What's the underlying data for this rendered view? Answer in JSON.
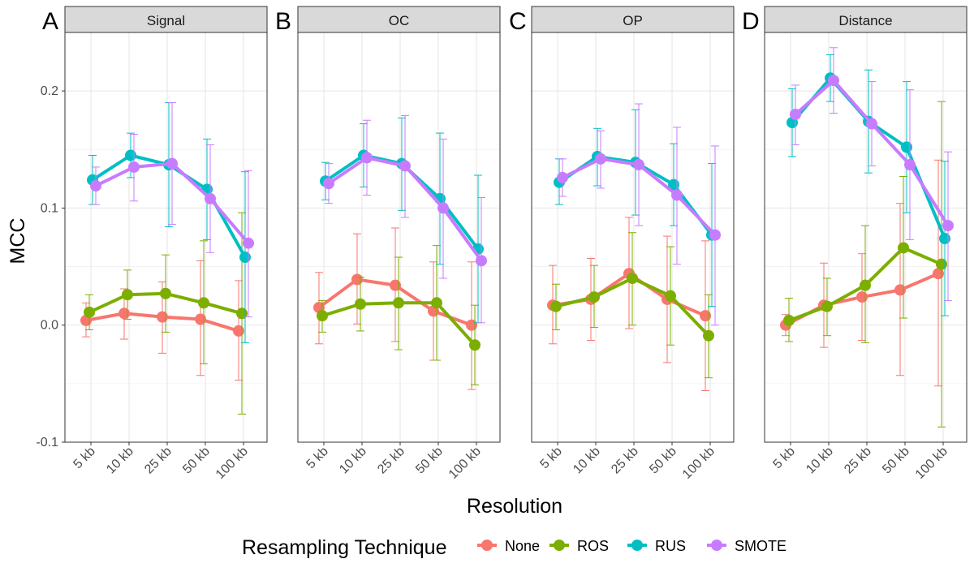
{
  "chart_data": {
    "type": "line",
    "facets": [
      "Signal",
      "OC",
      "OP",
      "Distance"
    ],
    "panel_letters": [
      "A",
      "B",
      "C",
      "D"
    ],
    "categories": [
      "5 kb",
      "10 kb",
      "25 kb",
      "50 kb",
      "100 kb"
    ],
    "xlabel": "Resolution",
    "ylabel": "MCC",
    "ylim": [
      -0.1,
      0.25
    ],
    "yticks": [
      -0.1,
      0.0,
      0.1,
      0.2
    ],
    "ytick_labels": [
      "-0.1",
      "0.0",
      "0.1",
      "0.2"
    ],
    "legend_title": "Resampling Technique",
    "legend_position": "bottom",
    "grid": true,
    "series": [
      {
        "name": "None",
        "color": "#F8766D",
        "panels": [
          {
            "mean": [
              0.004,
              0.01,
              0.007,
              0.005,
              -0.005
            ],
            "lower": [
              -0.01,
              -0.012,
              -0.024,
              -0.043,
              -0.047
            ],
            "upper": [
              0.019,
              0.031,
              0.037,
              0.055,
              0.038
            ]
          },
          {
            "mean": [
              0.015,
              0.039,
              0.034,
              0.012,
              0.0
            ],
            "lower": [
              -0.016,
              0.001,
              -0.014,
              -0.03,
              -0.055
            ],
            "upper": [
              0.045,
              0.078,
              0.083,
              0.054,
              0.054
            ]
          },
          {
            "mean": [
              0.017,
              0.022,
              0.044,
              0.022,
              0.008
            ],
            "lower": [
              -0.016,
              -0.013,
              -0.003,
              -0.032,
              -0.056
            ],
            "upper": [
              0.051,
              0.057,
              0.092,
              0.076,
              0.072
            ]
          },
          {
            "mean": [
              0.0,
              0.017,
              0.024,
              0.03,
              0.044
            ],
            "lower": [
              -0.009,
              -0.019,
              -0.013,
              -0.043,
              -0.052
            ],
            "upper": [
              0.009,
              0.053,
              0.061,
              0.104,
              0.141
            ]
          }
        ]
      },
      {
        "name": "ROS",
        "color": "#7CAE00",
        "panels": [
          {
            "mean": [
              0.011,
              0.026,
              0.027,
              0.019,
              0.01
            ],
            "lower": [
              -0.004,
              0.005,
              -0.006,
              -0.033,
              -0.076
            ],
            "upper": [
              0.026,
              0.047,
              0.06,
              0.072,
              0.096
            ]
          },
          {
            "mean": [
              0.008,
              0.018,
              0.019,
              0.019,
              -0.017
            ],
            "lower": [
              -0.006,
              -0.005,
              -0.021,
              -0.03,
              -0.051
            ],
            "upper": [
              0.021,
              0.041,
              0.058,
              0.068,
              0.017
            ]
          },
          {
            "mean": [
              0.016,
              0.024,
              0.04,
              0.025,
              -0.009
            ],
            "lower": [
              -0.004,
              -0.002,
              0.0,
              -0.017,
              -0.045
            ],
            "upper": [
              0.035,
              0.051,
              0.079,
              0.067,
              0.026
            ]
          },
          {
            "mean": [
              0.004,
              0.016,
              0.034,
              0.066,
              0.052
            ],
            "lower": [
              -0.014,
              -0.009,
              -0.015,
              0.006,
              -0.087
            ],
            "upper": [
              0.023,
              0.04,
              0.085,
              0.127,
              0.191
            ]
          }
        ]
      },
      {
        "name": "RUS",
        "color": "#00BFC4",
        "panels": [
          {
            "mean": [
              0.124,
              0.145,
              0.137,
              0.116,
              0.058
            ],
            "lower": [
              0.103,
              0.126,
              0.084,
              0.073,
              -0.015
            ],
            "upper": [
              0.145,
              0.164,
              0.19,
              0.159,
              0.131
            ]
          },
          {
            "mean": [
              0.123,
              0.145,
              0.138,
              0.108,
              0.065
            ],
            "lower": [
              0.107,
              0.118,
              0.098,
              0.052,
              0.002
            ],
            "upper": [
              0.139,
              0.172,
              0.177,
              0.164,
              0.128
            ]
          },
          {
            "mean": [
              0.122,
              0.144,
              0.139,
              0.12,
              0.077
            ],
            "lower": [
              0.103,
              0.119,
              0.094,
              0.085,
              0.016
            ],
            "upper": [
              0.142,
              0.168,
              0.184,
              0.155,
              0.138
            ]
          },
          {
            "mean": [
              0.173,
              0.211,
              0.174,
              0.152,
              0.074
            ],
            "lower": [
              0.144,
              0.191,
              0.13,
              0.096,
              0.008
            ],
            "upper": [
              0.202,
              0.231,
              0.218,
              0.208,
              0.14
            ]
          }
        ]
      },
      {
        "name": "SMOTE",
        "color": "#C77CFF",
        "panels": [
          {
            "mean": [
              0.119,
              0.135,
              0.138,
              0.108,
              0.07
            ],
            "lower": [
              0.103,
              0.106,
              0.086,
              0.062,
              0.007
            ],
            "upper": [
              0.135,
              0.163,
              0.19,
              0.154,
              0.132
            ]
          },
          {
            "mean": [
              0.121,
              0.143,
              0.136,
              0.1,
              0.055
            ],
            "lower": [
              0.104,
              0.111,
              0.092,
              0.04,
              0.002
            ],
            "upper": [
              0.138,
              0.175,
              0.179,
              0.159,
              0.109
            ]
          },
          {
            "mean": [
              0.126,
              0.142,
              0.137,
              0.111,
              0.077
            ],
            "lower": [
              0.11,
              0.117,
              0.085,
              0.052,
              0.0
            ],
            "upper": [
              0.142,
              0.166,
              0.189,
              0.169,
              0.153
            ]
          },
          {
            "mean": [
              0.18,
              0.209,
              0.172,
              0.137,
              0.085
            ],
            "lower": [
              0.154,
              0.181,
              0.136,
              0.073,
              0.021
            ],
            "upper": [
              0.205,
              0.237,
              0.208,
              0.201,
              0.148
            ]
          }
        ]
      }
    ]
  }
}
